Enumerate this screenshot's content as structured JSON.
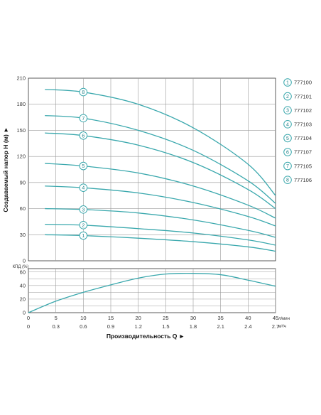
{
  "chart_data": [
    {
      "type": "line",
      "name_id": "head",
      "ylabel": "Создаваемый напор H (м)",
      "arrow": "►",
      "yticks": [
        0,
        30,
        60,
        90,
        120,
        150,
        180,
        210
      ],
      "ylim": [
        0,
        210
      ],
      "xlim": [
        0,
        45
      ],
      "grid": true,
      "series_color": "#3aa8ad",
      "series": [
        {
          "label": "1",
          "x": [
            3,
            10,
            20,
            30,
            40,
            45
          ],
          "y": [
            30,
            29,
            26,
            22,
            16,
            11
          ]
        },
        {
          "label": "2",
          "x": [
            3,
            10,
            20,
            30,
            40,
            45
          ],
          "y": [
            42,
            41,
            37,
            32,
            24,
            18
          ]
        },
        {
          "label": "3",
          "x": [
            3,
            10,
            20,
            30,
            40,
            45
          ],
          "y": [
            60,
            59,
            55,
            47,
            35,
            27
          ]
        },
        {
          "label": "4",
          "x": [
            3,
            10,
            20,
            30,
            40,
            45
          ],
          "y": [
            86,
            84,
            78,
            67,
            51,
            40
          ]
        },
        {
          "label": "5",
          "x": [
            3,
            10,
            20,
            30,
            40,
            45
          ],
          "y": [
            112,
            109,
            101,
            86,
            64,
            49
          ]
        },
        {
          "label": "6",
          "x": [
            3,
            10,
            20,
            30,
            40,
            45
          ],
          "y": [
            147,
            144,
            133,
            113,
            82,
            60
          ]
        },
        {
          "label": "7",
          "x": [
            3,
            10,
            20,
            30,
            40,
            45
          ],
          "y": [
            167,
            164,
            150,
            127,
            92,
            66
          ]
        },
        {
          "label": "8",
          "x": [
            3,
            10,
            20,
            30,
            40,
            45
          ],
          "y": [
            197,
            194,
            180,
            153,
            111,
            75
          ]
        }
      ],
      "badge_x": [
        10,
        10,
        10,
        10,
        10,
        10,
        10,
        10
      ],
      "legend": [
        {
          "label": "1",
          "model": "777100"
        },
        {
          "label": "2",
          "model": "777101"
        },
        {
          "label": "3",
          "model": "777102"
        },
        {
          "label": "4",
          "model": "777103"
        },
        {
          "label": "5",
          "model": "777104"
        },
        {
          "label": "6",
          "model": "777107"
        },
        {
          "label": "7",
          "model": "777105"
        },
        {
          "label": "8",
          "model": "777106"
        }
      ]
    },
    {
      "type": "line",
      "name_id": "efficiency",
      "ylabel": "КПД (%)",
      "yticks": [
        0,
        20,
        40,
        60
      ],
      "ylim": [
        0,
        65
      ],
      "xlim": [
        0,
        45
      ],
      "grid": true,
      "series": [
        {
          "x": [
            0,
            5,
            10,
            15,
            20,
            25,
            30,
            35,
            40,
            45
          ],
          "y": [
            0,
            17,
            30,
            41,
            51,
            57,
            58,
            56,
            48,
            39
          ]
        }
      ]
    }
  ],
  "x_axis": {
    "lpm_ticks": [
      0,
      5,
      10,
      15,
      20,
      25,
      30,
      35,
      40,
      45
    ],
    "lpm_unit": "л/мин",
    "m3h_ticks": [
      "0",
      "0.3",
      "0.6",
      "0.9",
      "1.2",
      "1.5",
      "1.8",
      "2.1",
      "2.4",
      "2.7"
    ],
    "m3h_unit": "м³/ч",
    "title": "Производительность Q",
    "arrow": "►"
  }
}
